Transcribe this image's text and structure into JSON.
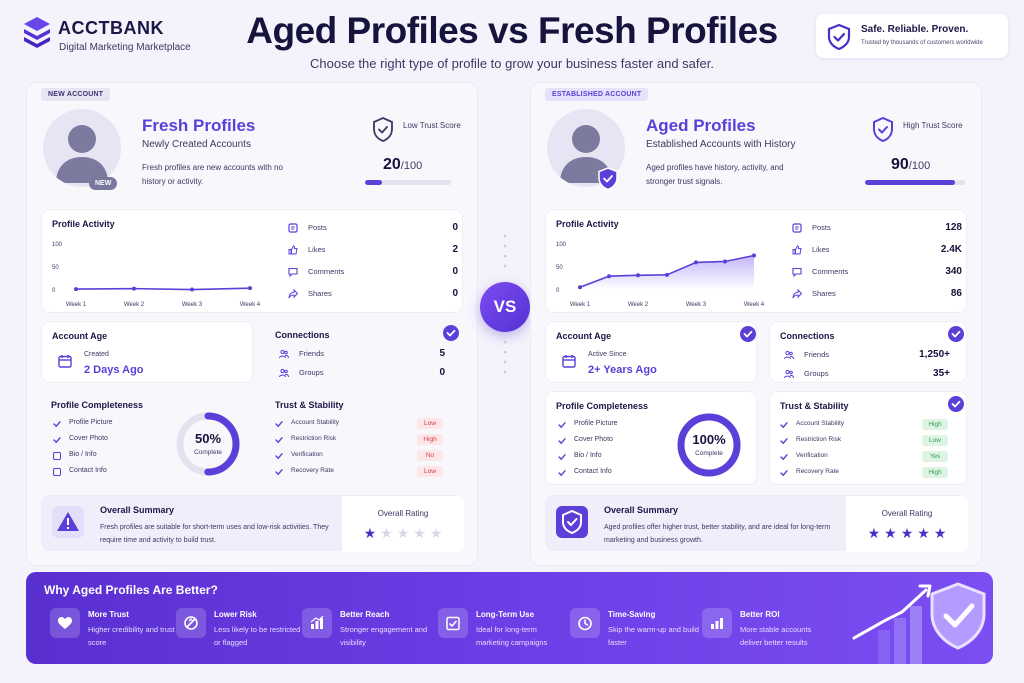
{
  "brand": {
    "name": "ACCTBANK",
    "tagline": "Digital Marketing Marketplace"
  },
  "header": {
    "title": "Aged Profiles vs Fresh Profiles",
    "subtitle": "Choose the right type of profile to grow your business faster and safer."
  },
  "trust_box": {
    "title": "Safe. Reliable. Proven.",
    "subtitle": "Trusted by thousands of customers worldwide"
  },
  "vs_label": "VS",
  "fresh": {
    "tag": "NEW ACCOUNT",
    "badge": "NEW",
    "title": "Fresh Profiles",
    "subtitle": "Newly Created Accounts",
    "description": "Fresh profiles are new accounts with no history or activity.",
    "trust_label": "Low Trust Score",
    "trust_score": "20",
    "trust_max": "/100",
    "trust_fraction": 0.2,
    "activity_title": "Profile Activity",
    "y_ticks": [
      "100",
      "50",
      "0"
    ],
    "weeks": [
      "Week 1",
      "Week 2",
      "Week 3",
      "Week 4"
    ],
    "activity_values": [
      2,
      3,
      1,
      4
    ],
    "stats": [
      {
        "label": "Posts",
        "value": "0"
      },
      {
        "label": "Likes",
        "value": "2"
      },
      {
        "label": "Comments",
        "value": "0"
      },
      {
        "label": "Shares",
        "value": "0"
      }
    ],
    "age_title": "Account Age",
    "age_label": "Created",
    "age_value": "2 Days Ago",
    "connections_title": "Connections",
    "connections": [
      {
        "label": "Friends",
        "value": "5"
      },
      {
        "label": "Groups",
        "value": "0"
      }
    ],
    "completeness_title": "Profile Completeness",
    "completeness_items": [
      {
        "label": "Profile Picture",
        "checked": true
      },
      {
        "label": "Cover Photo",
        "checked": true
      },
      {
        "label": "Bio / Info",
        "checked": false
      },
      {
        "label": "Contact Info",
        "checked": false
      }
    ],
    "completeness_value": "50%",
    "completeness_fraction": 0.5,
    "completeness_label": "Complete",
    "stability_title": "Trust & Stability",
    "stability": [
      {
        "label": "Account Stability",
        "value": "Low",
        "status": "bad"
      },
      {
        "label": "Restriction Risk",
        "value": "High",
        "status": "bad"
      },
      {
        "label": "Verification",
        "value": "No",
        "status": "bad"
      },
      {
        "label": "Recovery Rate",
        "value": "Low",
        "status": "bad"
      }
    ],
    "summary_title": "Overall Summary",
    "summary_text": "Fresh profiles are suitable for short-term uses and low-risk activities. They require time and activity to build trust.",
    "rating_label": "Overall Rating",
    "rating": 1,
    "rating_max": 5
  },
  "aged": {
    "tag": "ESTABLISHED ACCOUNT",
    "title": "Aged Profiles",
    "subtitle": "Established Accounts with History",
    "description": "Aged profiles have history, activity, and stronger trust signals.",
    "trust_label": "High Trust Score",
    "trust_score": "90",
    "trust_max": "/100",
    "trust_fraction": 0.9,
    "activity_title": "Profile Activity",
    "y_ticks": [
      "100",
      "50",
      "0"
    ],
    "weeks": [
      "Week 1",
      "Week 2",
      "Week 3",
      "Week 4"
    ],
    "activity_values": [
      6,
      30,
      32,
      33,
      60,
      62,
      75
    ],
    "stats": [
      {
        "label": "Posts",
        "value": "128"
      },
      {
        "label": "Likes",
        "value": "2.4K"
      },
      {
        "label": "Comments",
        "value": "340"
      },
      {
        "label": "Shares",
        "value": "86"
      }
    ],
    "age_title": "Account Age",
    "age_label": "Active Since",
    "age_value": "2+ Years Ago",
    "connections_title": "Connections",
    "connections": [
      {
        "label": "Friends",
        "value": "1,250+"
      },
      {
        "label": "Groups",
        "value": "35+"
      }
    ],
    "completeness_title": "Profile Completeness",
    "completeness_items": [
      {
        "label": "Profile Picture",
        "checked": true
      },
      {
        "label": "Cover Photo",
        "checked": true
      },
      {
        "label": "Bio / Info",
        "checked": true
      },
      {
        "label": "Contact Info",
        "checked": true
      }
    ],
    "completeness_value": "100%",
    "completeness_fraction": 1.0,
    "completeness_label": "Complete",
    "stability_title": "Trust & Stability",
    "stability": [
      {
        "label": "Account Stability",
        "value": "High",
        "status": "good"
      },
      {
        "label": "Restriction Risk",
        "value": "Low",
        "status": "good"
      },
      {
        "label": "Verification",
        "value": "Yes",
        "status": "good"
      },
      {
        "label": "Recovery Rate",
        "value": "High",
        "status": "good"
      }
    ],
    "summary_title": "Overall Summary",
    "summary_text": "Aged profiles offer higher trust, better stability, and are ideal for long-term marketing and business growth.",
    "rating_label": "Overall Rating",
    "rating": 5,
    "rating_max": 5
  },
  "benefits": {
    "title": "Why Aged Profiles Are Better?",
    "items": [
      {
        "title": "More Trust",
        "desc": "Higher credibility and trust score",
        "icon": "trust-icon"
      },
      {
        "title": "Lower Risk",
        "desc": "Less likely to be restricted or flagged",
        "icon": "lower-risk-icon"
      },
      {
        "title": "Better Reach",
        "desc": "Stronger engagement and visibility",
        "icon": "reach-icon"
      },
      {
        "title": "Long-Term Use",
        "desc": "Ideal for long-term marketing campaigns",
        "icon": "long-term-icon"
      },
      {
        "title": "Time-Saving",
        "desc": "Skip the warm-up and build faster",
        "icon": "clock-icon"
      },
      {
        "title": "Better ROI",
        "desc": "More stable accounts deliver better results",
        "icon": "roi-icon"
      }
    ]
  },
  "colors": {
    "accent": "#5b3fd8",
    "bad": "#d83a4a",
    "good": "#2f9a4a",
    "navy": "#16133c"
  }
}
